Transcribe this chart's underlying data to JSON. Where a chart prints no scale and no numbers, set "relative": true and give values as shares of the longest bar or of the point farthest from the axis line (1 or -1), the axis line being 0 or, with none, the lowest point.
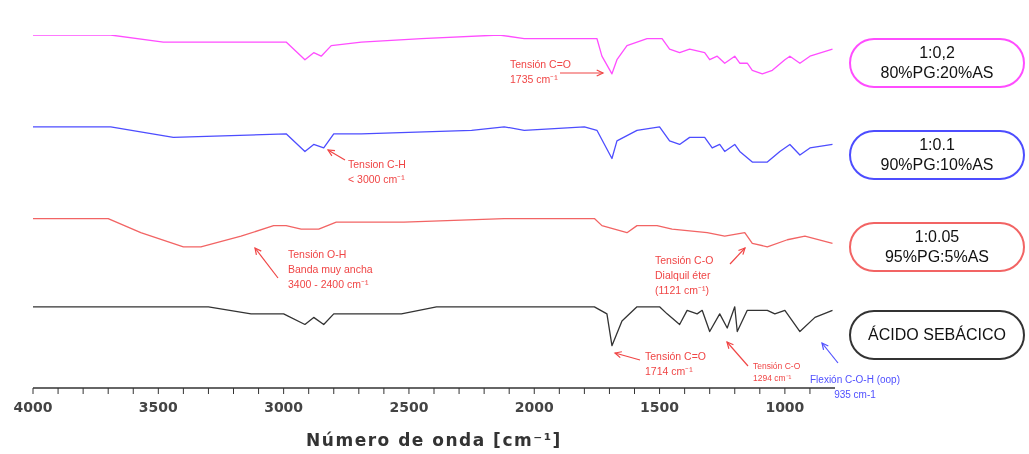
{
  "chart_data": {
    "type": "line",
    "relative": true,
    "xlabel": "Número de onda [cm⁻¹]",
    "xlim": [
      4000,
      800
    ],
    "xticks": [
      4000,
      {
        "value": 3900,
        "label": null
      },
      {
        "value": 3800,
        "label": null
      },
      {
        "value": 3700,
        "label": null
      },
      {
        "value": 3600,
        "label": null
      },
      3500,
      {
        "value": 3400,
        "label": null
      },
      {
        "value": 3300,
        "label": null
      },
      {
        "value": 3200,
        "label": null
      },
      {
        "value": 3100,
        "label": null
      },
      3000,
      {
        "value": 2900,
        "label": null
      },
      {
        "value": 2800,
        "label": null
      },
      {
        "value": 2700,
        "label": null
      },
      {
        "value": 2600,
        "label": null
      },
      2500,
      {
        "value": 2400,
        "label": null
      },
      {
        "value": 2300,
        "label": null
      },
      {
        "value": 2200,
        "label": null
      },
      {
        "value": 2100,
        "label": null
      },
      2000,
      {
        "value": 1900,
        "label": null
      },
      {
        "value": 1800,
        "label": null
      },
      {
        "value": 1700,
        "label": null
      },
      {
        "value": 1600,
        "label": null
      },
      1500,
      {
        "value": 1400,
        "label": null
      },
      {
        "value": 1300,
        "label": null
      },
      {
        "value": 1200,
        "label": null
      },
      {
        "value": 1100,
        "label": null
      },
      1000,
      {
        "value": 900,
        "label": null
      }
    ],
    "legend": "right",
    "marker": "none",
    "series": [
      {
        "name": "1:0,2\n80%PG:20%AS",
        "color": "#ff4dff",
        "x": [
          4000,
          3690,
          3480,
          2990,
          2915,
          2880,
          2850,
          2810,
          2690,
          2450,
          2140,
          2040,
          1800,
          1750,
          1730,
          1690,
          1670,
          1630,
          1550,
          1490,
          1460,
          1420,
          1380,
          1320,
          1300,
          1270,
          1240,
          1200,
          1180,
          1150,
          1130,
          1090,
          1050,
          1000,
          980,
          940,
          900,
          810
        ],
        "values": [
          1,
          1,
          0.98,
          0.98,
          0.93,
          0.95,
          0.94,
          0.97,
          0.98,
          0.99,
          1,
          0.99,
          0.99,
          0.99,
          0.94,
          0.89,
          0.93,
          0.97,
          0.99,
          0.99,
          0.96,
          0.95,
          0.96,
          0.95,
          0.93,
          0.94,
          0.92,
          0.94,
          0.92,
          0.92,
          0.9,
          0.89,
          0.9,
          0.93,
          0.94,
          0.92,
          0.94,
          0.96
        ]
      },
      {
        "name": "1:0.1\n90%PG:10%AS",
        "color": "#4d4dff",
        "x": [
          4000,
          3690,
          3440,
          2990,
          2915,
          2880,
          2840,
          2800,
          2690,
          2250,
          2120,
          2040,
          1800,
          1750,
          1690,
          1670,
          1590,
          1500,
          1460,
          1420,
          1380,
          1320,
          1290,
          1260,
          1240,
          1200,
          1180,
          1130,
          1070,
          1020,
          980,
          940,
          900,
          810
        ],
        "values": [
          0.74,
          0.74,
          0.71,
          0.72,
          0.67,
          0.69,
          0.68,
          0.72,
          0.72,
          0.73,
          0.74,
          0.73,
          0.74,
          0.73,
          0.65,
          0.7,
          0.73,
          0.74,
          0.7,
          0.69,
          0.71,
          0.71,
          0.68,
          0.69,
          0.67,
          0.69,
          0.67,
          0.64,
          0.64,
          0.67,
          0.69,
          0.66,
          0.68,
          0.69
        ]
      },
      {
        "name": "1:0.05\n95%PG:5%AS",
        "color": "#f26464",
        "x": [
          4000,
          3700,
          3570,
          3400,
          3330,
          3170,
          3040,
          2990,
          2930,
          2860,
          2790,
          2520,
          2120,
          2040,
          1760,
          1730,
          1630,
          1590,
          1510,
          1450,
          1310,
          1240,
          1160,
          1130,
          1070,
          990,
          920,
          810
        ],
        "values": [
          0.48,
          0.48,
          0.44,
          0.4,
          0.4,
          0.43,
          0.46,
          0.46,
          0.45,
          0.45,
          0.47,
          0.47,
          0.48,
          0.48,
          0.48,
          0.46,
          0.44,
          0.46,
          0.46,
          0.45,
          0.44,
          0.43,
          0.44,
          0.41,
          0.4,
          0.42,
          0.43,
          0.41
        ]
      },
      {
        "name": "ÁCIDO SEBÁCICO",
        "color": "#333333",
        "x": [
          4000,
          3300,
          3130,
          3000,
          2915,
          2880,
          2840,
          2800,
          2650,
          2530,
          2390,
          2120,
          1760,
          1710,
          1690,
          1650,
          1590,
          1500,
          1470,
          1420,
          1390,
          1350,
          1330,
          1300,
          1260,
          1230,
          1200,
          1190,
          1150,
          1070,
          1040,
          1000,
          940,
          880,
          810
        ],
        "values": [
          0.23,
          0.23,
          0.21,
          0.21,
          0.18,
          0.2,
          0.18,
          0.21,
          0.21,
          0.21,
          0.23,
          0.23,
          0.23,
          0.21,
          0.12,
          0.19,
          0.23,
          0.23,
          0.21,
          0.18,
          0.22,
          0.21,
          0.22,
          0.16,
          0.21,
          0.17,
          0.23,
          0.16,
          0.22,
          0.22,
          0.21,
          0.22,
          0.16,
          0.2,
          0.22
        ]
      }
    ],
    "annotations": [
      "Tensión C=O\n1735 cm⁻¹",
      "Tension C-H\n< 3000 cm⁻¹",
      "Tensión O-H\nBanda muy ancha\n3400 - 2400 cm⁻¹",
      "Tensión C-O\nDialquil  éter\n(1121 cm⁻¹)",
      "Tensión C=O\n1714 cm⁻¹",
      "Tensión C-O\n1294 cm⁻¹",
      "Flexión C-O-H (oop)\n935 cm-1"
    ]
  }
}
